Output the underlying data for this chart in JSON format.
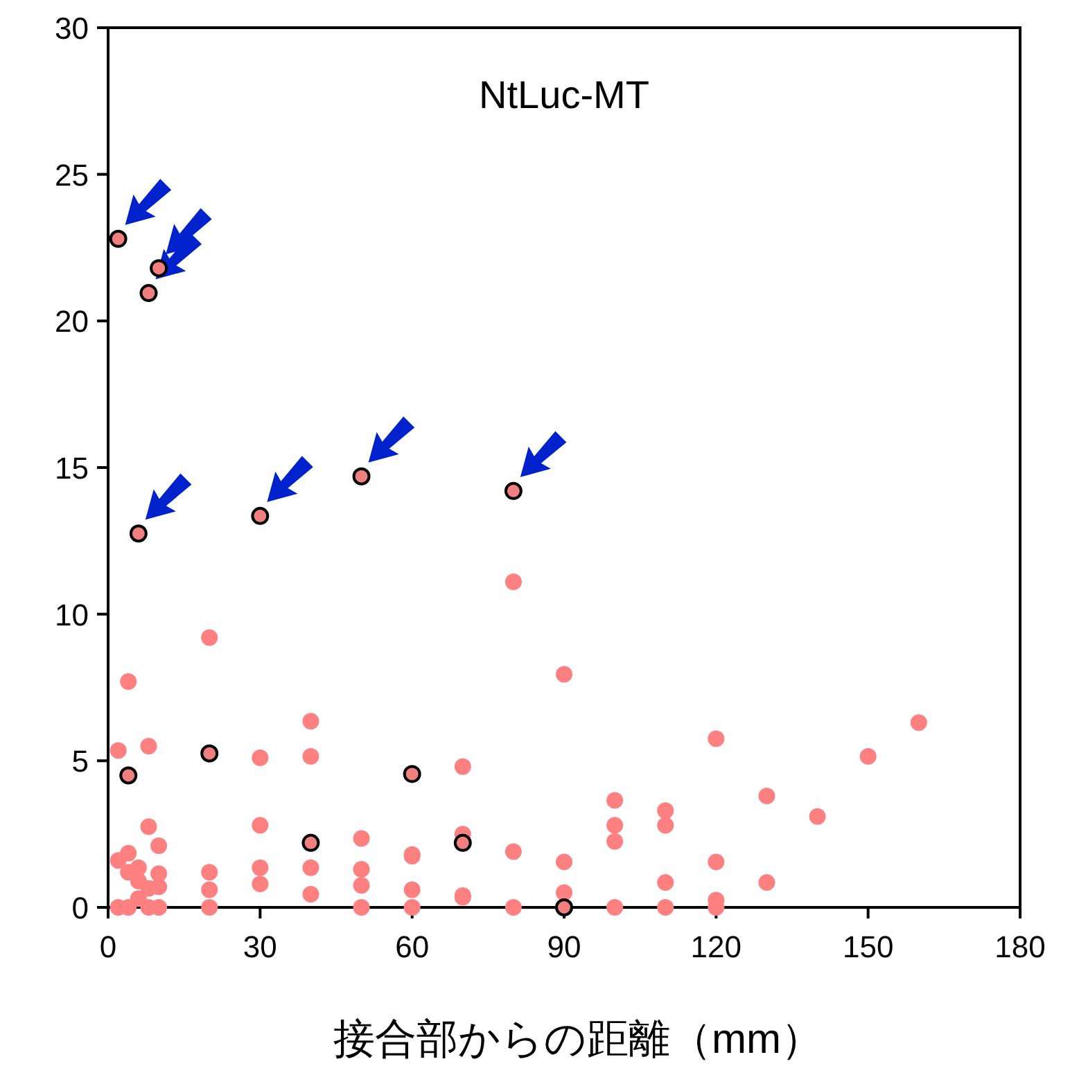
{
  "chart_data": {
    "type": "scatter",
    "title": "NtLuc-MT",
    "xlabel": "接合部からの距離（mm）",
    "xlim": [
      0,
      180
    ],
    "xticks": [
      0,
      30,
      60,
      90,
      120,
      150,
      180
    ],
    "ylim": [
      0,
      30
    ],
    "yticks": [
      0,
      5,
      10,
      15,
      20,
      25,
      30
    ],
    "marker": "circle",
    "grid": false,
    "series": [
      {
        "color": "#ff8080",
        "x": [
          2,
          2,
          2,
          4,
          4,
          4,
          4,
          6,
          6,
          6,
          8,
          8,
          8,
          8,
          10,
          10,
          10,
          10,
          20,
          20,
          20,
          20,
          30,
          30,
          30,
          30,
          40,
          40,
          40,
          40,
          50,
          50,
          50,
          50,
          60,
          60,
          60,
          60,
          70,
          70,
          70,
          70,
          80,
          80,
          80,
          90,
          90,
          90,
          100,
          100,
          100,
          100,
          110,
          110,
          110,
          110,
          120,
          120,
          120,
          120,
          130,
          130,
          140,
          150,
          160
        ],
        "values": [
          5.35,
          1.6,
          0,
          7.7,
          1.85,
          1.2,
          0,
          1.35,
          0.9,
          0.3,
          5.5,
          2.75,
          0.65,
          0,
          2.1,
          1.15,
          0.7,
          0,
          9.2,
          1.2,
          0.6,
          0,
          5.1,
          2.8,
          1.35,
          0.8,
          6.35,
          5.15,
          1.35,
          0.45,
          2.35,
          1.3,
          0.75,
          0,
          1.8,
          1.75,
          0.6,
          0,
          4.8,
          2.5,
          0.4,
          0.35,
          11.1,
          1.9,
          0,
          7.95,
          1.55,
          0.5,
          3.65,
          2.8,
          2.25,
          0,
          3.3,
          2.8,
          0.85,
          0,
          5.75,
          1.55,
          0.25,
          0,
          3.8,
          0.85,
          3.1,
          5.15,
          6.3
        ]
      },
      {
        "color": "#f08080",
        "x": [
          2,
          10,
          8,
          6,
          30,
          50,
          80
        ],
        "values": [
          22.8,
          21.8,
          20.95,
          12.75,
          13.35,
          14.7,
          14.2
        ]
      },
      {
        "color": "#f08080",
        "x": [
          4,
          20,
          60,
          40,
          70,
          90
        ],
        "values": [
          4.5,
          5.25,
          4.55,
          2.2,
          2.2,
          0
        ]
      }
    ]
  }
}
